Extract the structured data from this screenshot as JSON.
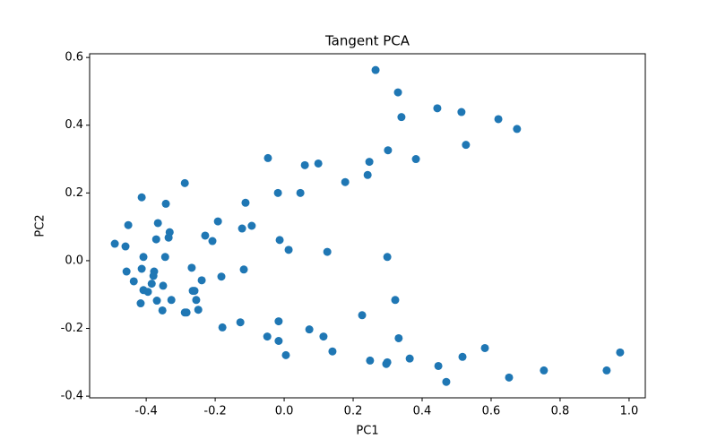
{
  "chart_data": {
    "type": "scatter",
    "title": "Tangent PCA",
    "x_label": "PC1",
    "y_label": "PC2",
    "color": "#1f77b4",
    "x": [
      0.265,
      0.33,
      0.34,
      0.444,
      0.514,
      0.621,
      0.675,
      0.527,
      0.382,
      0.301,
      0.247,
      0.242,
      0.177,
      0.099,
      0.06,
      -0.047,
      0.047,
      -0.018,
      -0.112,
      -0.094,
      -0.122,
      -0.192,
      -0.288,
      -0.413,
      -0.343,
      -0.452,
      -0.366,
      -0.332,
      -0.335,
      -0.371,
      -0.491,
      -0.46,
      -0.229,
      -0.208,
      -0.013,
      0.013,
      0.125,
      0.299,
      -0.408,
      -0.345,
      -0.457,
      -0.413,
      -0.377,
      -0.379,
      -0.384,
      -0.436,
      -0.351,
      -0.268,
      -0.117,
      -0.182,
      -0.239,
      -0.26,
      -0.265,
      -0.408,
      -0.395,
      -0.255,
      -0.327,
      -0.369,
      -0.416,
      -0.353,
      -0.249,
      -0.288,
      -0.283,
      0.322,
      0.226,
      -0.127,
      -0.016,
      -0.179,
      0.073,
      0.114,
      -0.049,
      -0.016,
      0.332,
      0.14,
      0.005,
      0.582,
      0.974,
      0.364,
      0.517,
      0.249,
      0.299,
      0.296,
      0.447,
      0.753,
      0.935,
      0.652,
      0.47
    ],
    "y": [
      0.563,
      0.497,
      0.424,
      0.45,
      0.439,
      0.418,
      0.389,
      0.342,
      0.3,
      0.326,
      0.292,
      0.253,
      0.232,
      0.287,
      0.282,
      0.303,
      0.2,
      0.2,
      0.171,
      0.103,
      0.095,
      0.116,
      0.229,
      0.187,
      0.168,
      0.105,
      0.111,
      0.084,
      0.068,
      0.063,
      0.05,
      0.042,
      0.074,
      0.058,
      0.061,
      0.032,
      0.026,
      0.011,
      0.011,
      0.011,
      -0.032,
      -0.024,
      -0.032,
      -0.045,
      -0.068,
      -0.061,
      -0.074,
      -0.021,
      -0.026,
      -0.047,
      -0.058,
      -0.089,
      -0.089,
      -0.087,
      -0.092,
      -0.116,
      -0.116,
      -0.118,
      -0.126,
      -0.147,
      -0.145,
      -0.153,
      -0.153,
      -0.116,
      -0.161,
      -0.182,
      -0.179,
      -0.197,
      -0.203,
      -0.224,
      -0.224,
      -0.237,
      -0.229,
      -0.268,
      -0.279,
      -0.258,
      -0.271,
      -0.289,
      -0.284,
      -0.295,
      -0.3,
      -0.305,
      -0.311,
      -0.324,
      -0.324,
      -0.345,
      -0.358
    ],
    "xlim": [
      -0.564,
      1.047
    ],
    "ylim": [
      -0.405,
      0.611
    ],
    "xticks": [
      -0.4,
      -0.2,
      {
        "value": 0,
        "label": "0.0"
      },
      0.2,
      0.4,
      0.6,
      0.8,
      {
        "value": 1,
        "label": "1.0"
      }
    ],
    "yticks": [
      -0.4,
      -0.2,
      {
        "value": 0,
        "label": "0.0"
      },
      0.2,
      0.4,
      0.6
    ]
  }
}
